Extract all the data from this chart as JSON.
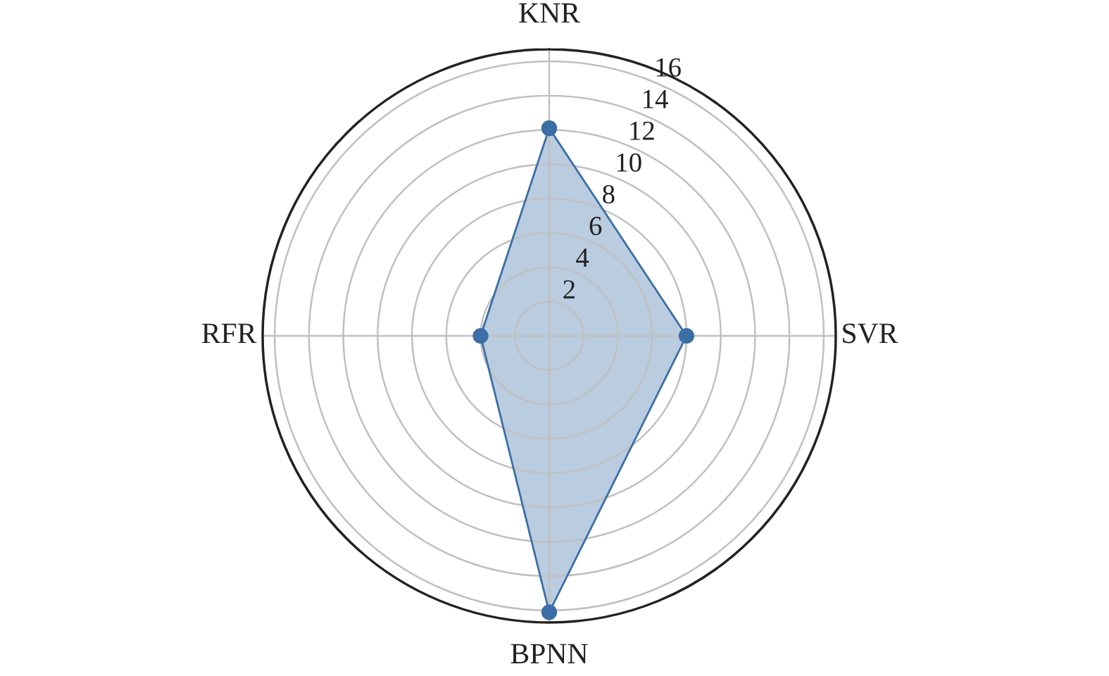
{
  "chart_data": {
    "type": "radar",
    "categories": [
      "KNR",
      "SVR",
      "BPNN",
      "RFR"
    ],
    "series": [
      {
        "color": "#3a6ea5",
        "values": [
          12.1,
          8.0,
          16.1,
          4.0
        ]
      }
    ],
    "ylim": [
      0,
      16.7
    ],
    "yticks": [
      2,
      4,
      6,
      8,
      10,
      12,
      14,
      16
    ],
    "grid": true,
    "marker": "circle",
    "line_style": "solid"
  }
}
